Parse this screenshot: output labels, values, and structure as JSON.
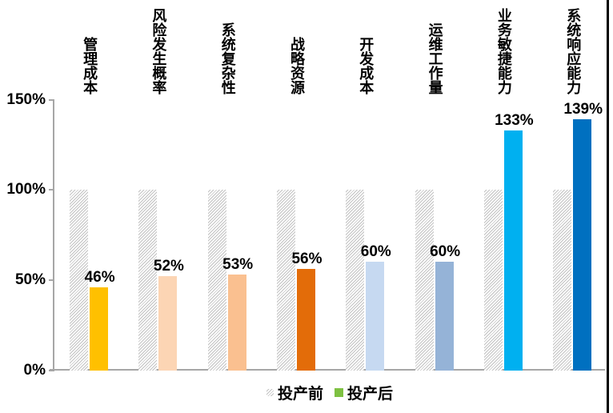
{
  "chart_data": {
    "type": "bar",
    "title": "",
    "categories": [
      "管理成本",
      "风险发生概率",
      "系统复杂性",
      "战略资源",
      "开发成本",
      "运维工作量",
      "业务敏捷能力",
      "系统响应能力"
    ],
    "series": [
      {
        "name": "投产前",
        "values": [
          100,
          100,
          100,
          100,
          100,
          100,
          100,
          100
        ],
        "fill": "gray-diagonal-hatch",
        "hatch_line_color": "#c2c2c2"
      },
      {
        "name": "投产后",
        "values": [
          46,
          52,
          53,
          56,
          60,
          60,
          133,
          139
        ],
        "bar_colors": [
          "#FFC000",
          "#FCD5B4",
          "#FAC090",
          "#E36C09",
          "#C6D9F1",
          "#95B3D7",
          "#00B0F0",
          "#0070C0"
        ],
        "legend_color": "#7EC142"
      }
    ],
    "value_labels": [
      "46%",
      "52%",
      "53%",
      "56%",
      "60%",
      "60%",
      "133%",
      "139%"
    ],
    "yticks": [
      {
        "label": "0%",
        "value": 0
      },
      {
        "label": "50%",
        "value": 50
      },
      {
        "label": "100%",
        "value": 100
      },
      {
        "label": "150%",
        "value": 150
      }
    ],
    "ylim": [
      0,
      150
    ],
    "grid": false,
    "legend_position": "bottom",
    "axis_color": "#a6a6a6",
    "value_label_color": "#000000"
  }
}
